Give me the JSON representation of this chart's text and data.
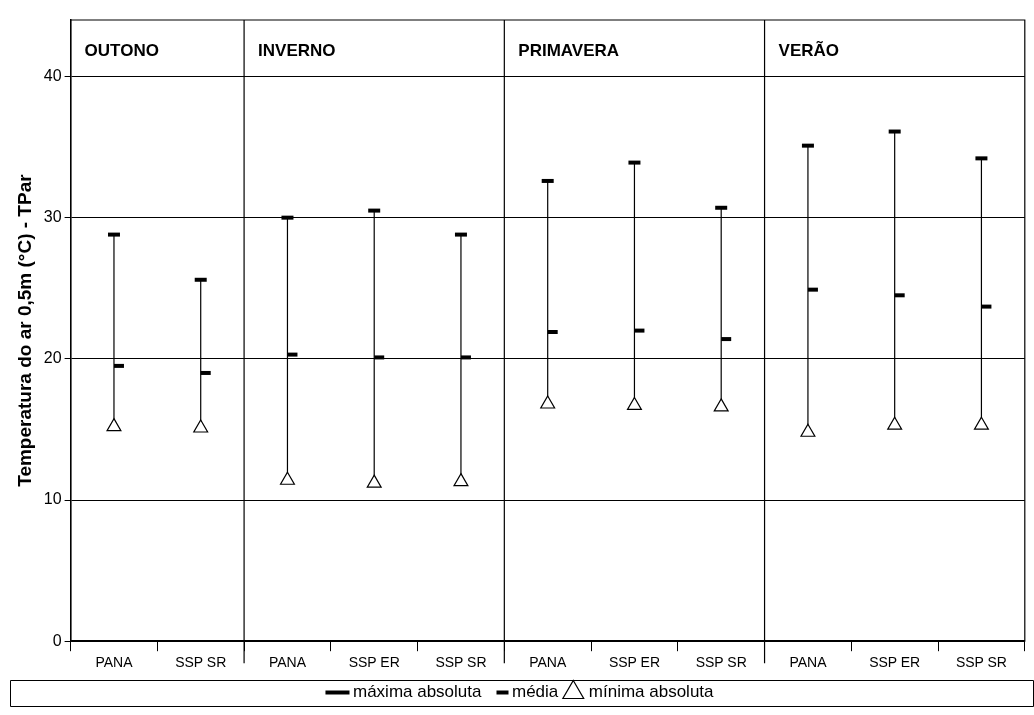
{
  "chart_data": {
    "type": "scatter",
    "ylabel": "Temperatura do ar 0,5m (°C) - TPar",
    "categories": [
      "PANA",
      "SSP SR",
      "PANA",
      "SSP ER",
      "SSP SR",
      "PANA",
      "SSP ER",
      "SSP SR",
      "PANA",
      "SSP ER",
      "SSP SR"
    ],
    "series": [
      {
        "name": "máxima absoluta",
        "color": "#000000",
        "values": [
          28.8,
          25.6,
          30.0,
          30.5,
          28.8,
          32.6,
          33.9,
          30.7,
          35.1,
          36.1,
          34.2
        ]
      },
      {
        "name": "média",
        "color": "#000000",
        "values": [
          19.5,
          19.0,
          20.3,
          20.1,
          20.1,
          21.9,
          22.0,
          21.4,
          24.9,
          24.5,
          23.7
        ]
      },
      {
        "name": "mínima absoluta",
        "color": "#000000",
        "marker": "triangle",
        "values": [
          15.2,
          15.1,
          11.4,
          11.2,
          11.3,
          16.8,
          16.7,
          16.6,
          14.8,
          15.3,
          15.3
        ]
      }
    ],
    "annotations": [
      "OUTONO",
      "INVERNO",
      "PRIMAVERA",
      "VERÃO"
    ],
    "ylim": [
      0,
      44
    ],
    "yticks": [
      0,
      10,
      20,
      30,
      40
    ],
    "grid": "y",
    "legend": "bottom"
  }
}
